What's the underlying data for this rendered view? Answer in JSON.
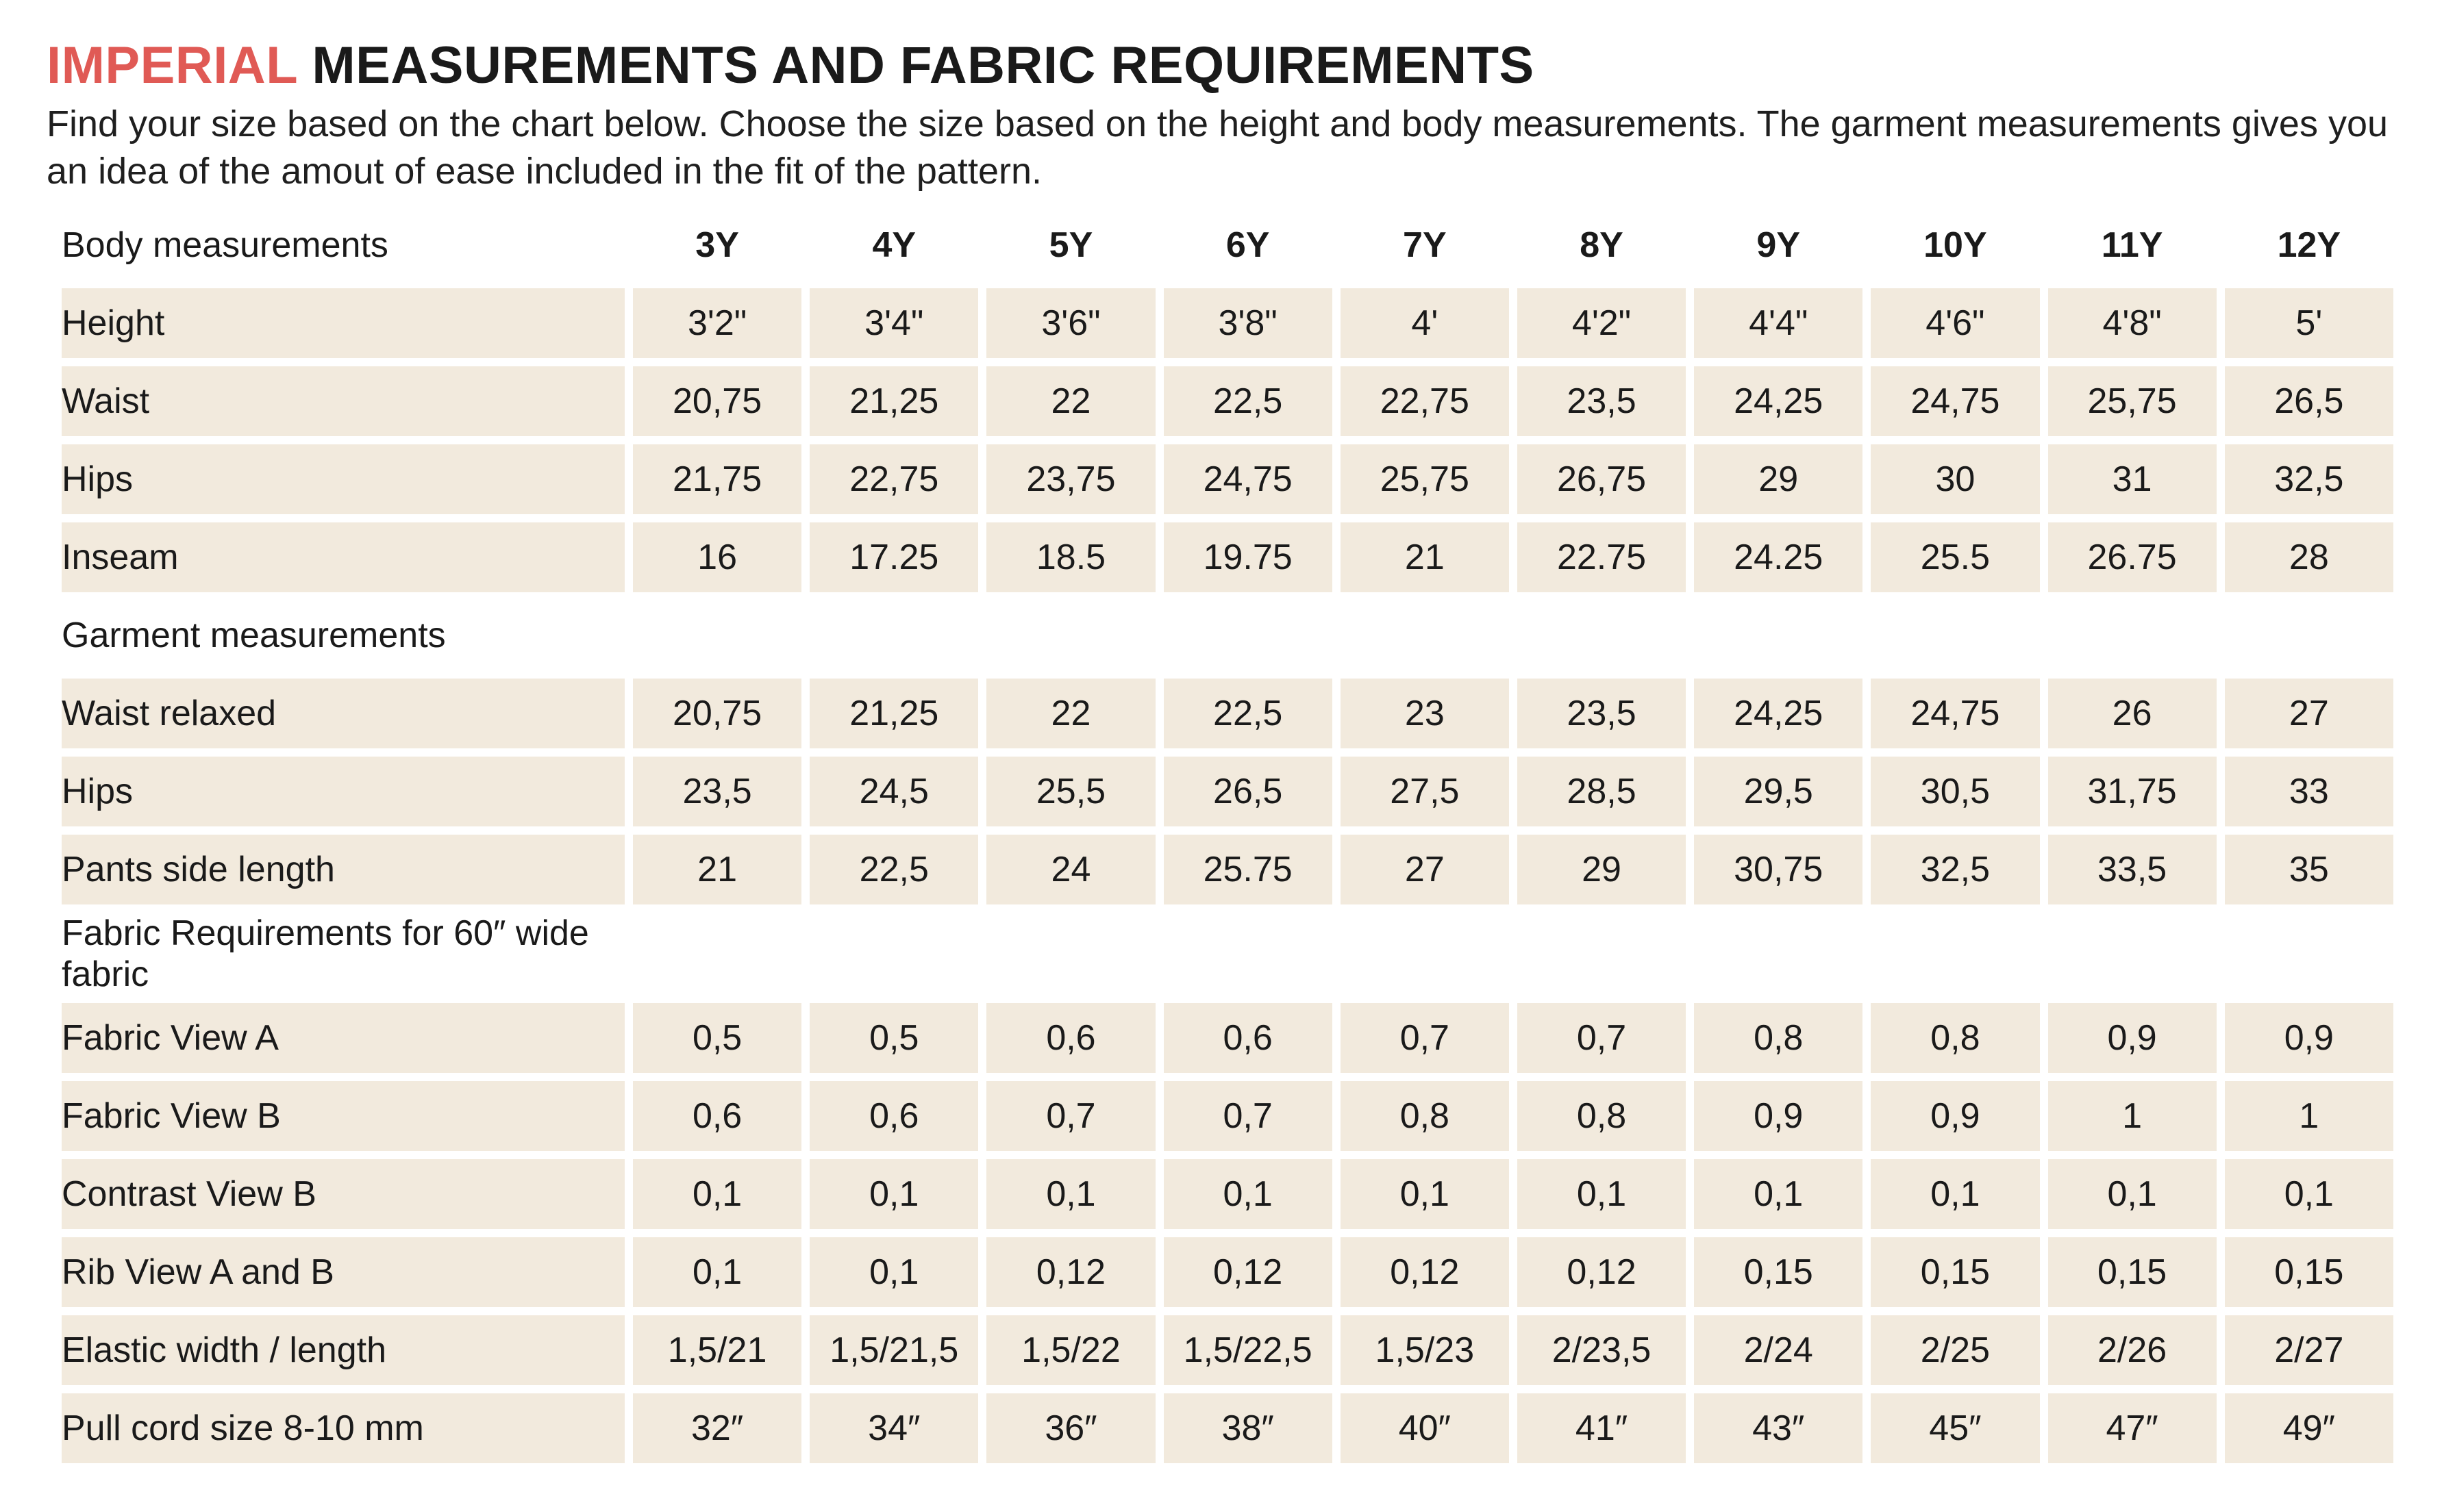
{
  "title": {
    "accent": "IMPERIAL",
    "rest": " MEASUREMENTS AND FABRIC REQUIREMENTS"
  },
  "intro": "Find your size based on the chart below. Choose the size based on the height and body measurements. The garment measurements gives you an idea of the amout of ease included in the fit of the pattern.",
  "sizes": [
    "3Y",
    "4Y",
    "5Y",
    "6Y",
    "7Y",
    "8Y",
    "9Y",
    "10Y",
    "11Y",
    "12Y"
  ],
  "sections": [
    {
      "heading": "Body measurements",
      "show_sizes": true,
      "rows": [
        {
          "label": "Height",
          "values": [
            "3'2\"",
            "3'4\"",
            "3'6\"",
            "3'8\"",
            "4'",
            "4'2\"",
            "4'4\"",
            "4'6\"",
            "4'8\"",
            "5'"
          ]
        },
        {
          "label": "Waist",
          "values": [
            "20,75",
            "21,25",
            "22",
            "22,5",
            "22,75",
            "23,5",
            "24,25",
            "24,75",
            "25,75",
            "26,5"
          ]
        },
        {
          "label": "Hips",
          "values": [
            "21,75",
            "22,75",
            "23,75",
            "24,75",
            "25,75",
            "26,75",
            "29",
            "30",
            "31",
            "32,5"
          ]
        },
        {
          "label": "Inseam",
          "values": [
            "16",
            "17.25",
            "18.5",
            "19.75",
            "21",
            "22.75",
            "24.25",
            "25.5",
            "26.75",
            "28"
          ]
        }
      ]
    },
    {
      "heading": "Garment measurements",
      "show_sizes": false,
      "rows": [
        {
          "label": "Waist relaxed",
          "values": [
            "20,75",
            "21,25",
            "22",
            "22,5",
            "23",
            "23,5",
            "24,25",
            "24,75",
            "26",
            "27"
          ]
        },
        {
          "label": "Hips",
          "values": [
            "23,5",
            "24,5",
            "25,5",
            "26,5",
            "27,5",
            "28,5",
            "29,5",
            "30,5",
            "31,75",
            "33"
          ]
        },
        {
          "label": "Pants side length",
          "values": [
            "21",
            "22,5",
            "24",
            "25.75",
            "27",
            "29",
            "30,75",
            "32,5",
            "33,5",
            "35"
          ]
        }
      ]
    },
    {
      "heading": "Fabric Requirements for  60″ wide fabric",
      "show_sizes": false,
      "rows": [
        {
          "label": "Fabric View A",
          "values": [
            "0,5",
            "0,5",
            "0,6",
            "0,6",
            "0,7",
            "0,7",
            "0,8",
            "0,8",
            "0,9",
            "0,9"
          ]
        },
        {
          "label": "Fabric View B",
          "values": [
            "0,6",
            "0,6",
            "0,7",
            "0,7",
            "0,8",
            "0,8",
            "0,9",
            "0,9",
            "1",
            "1"
          ]
        },
        {
          "label": "Contrast View B",
          "values": [
            "0,1",
            "0,1",
            "0,1",
            "0,1",
            "0,1",
            "0,1",
            "0,1",
            "0,1",
            "0,1",
            "0,1"
          ]
        },
        {
          "label": "Rib View A and B",
          "values": [
            "0,1",
            "0,1",
            "0,12",
            "0,12",
            "0,12",
            "0,12",
            "0,15",
            "0,15",
            "0,15",
            "0,15"
          ]
        },
        {
          "label": "Elastic width / length",
          "values": [
            "1,5/21",
            "1,5/21,5",
            "1,5/22",
            "1,5/22,5",
            "1,5/23",
            "2/23,5",
            "2/24",
            "2/25",
            "2/26",
            "2/27"
          ]
        },
        {
          "label": "Pull cord size 8-10 mm",
          "values": [
            "32″",
            "34″",
            "36″",
            "38″",
            "40″",
            "41″",
            "43″",
            "45″",
            "47″",
            "49″"
          ]
        }
      ]
    }
  ]
}
